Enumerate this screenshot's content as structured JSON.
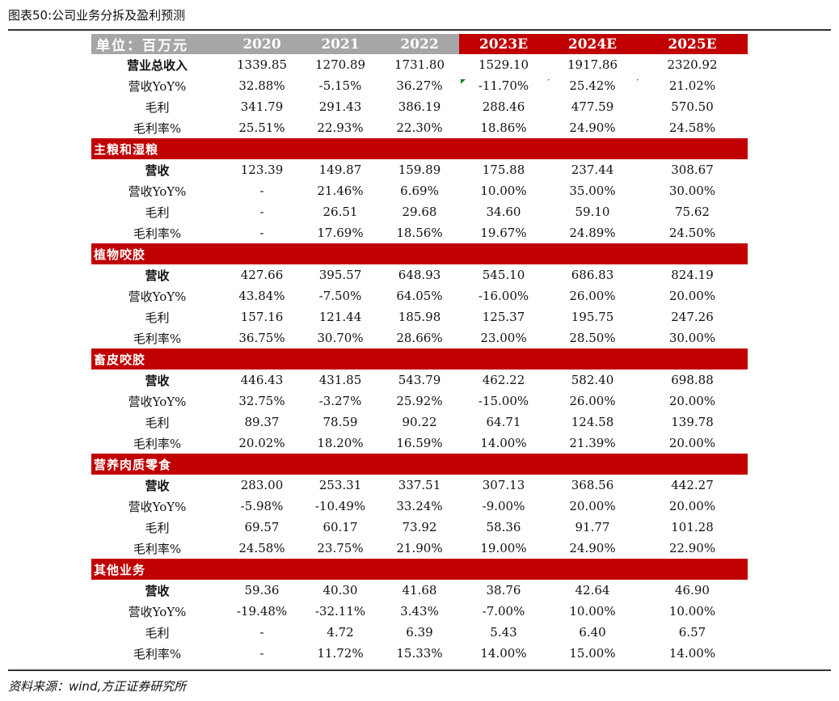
{
  "caption": "图表50:公司业务分拆及盈利预测",
  "source": "资料来源：wind,方正证券研究所",
  "header": {
    "unit": "单位：百万元",
    "years": [
      "2020",
      "2021",
      "2022",
      "2023E",
      "2024E",
      "2025E"
    ]
  },
  "total": {
    "rows": [
      {
        "label": "营业总收入",
        "bold": true,
        "values": [
          "1339.85",
          "1270.89",
          "1731.80",
          "1529.10",
          "1917.86",
          "2320.92"
        ]
      },
      {
        "label": "营收YoY%",
        "bold": false,
        "values": [
          "32.88%",
          "-5.15%",
          "36.27%",
          "-11.70%",
          "25.42%",
          "21.02%"
        ],
        "flags": true
      },
      {
        "label": "毛利",
        "bold": false,
        "values": [
          "341.79",
          "291.43",
          "386.19",
          "288.46",
          "477.59",
          "570.50"
        ]
      },
      {
        "label": "毛利率%",
        "bold": false,
        "values": [
          "25.51%",
          "22.93%",
          "22.30%",
          "18.86%",
          "24.90%",
          "24.58%"
        ]
      }
    ]
  },
  "sections": [
    {
      "title": "主粮和湿粮",
      "rows": [
        {
          "label": "营收",
          "bold": true,
          "values": [
            "123.39",
            "149.87",
            "159.89",
            "175.88",
            "237.44",
            "308.67"
          ]
        },
        {
          "label": "营收YoY%",
          "bold": false,
          "values": [
            "-",
            "21.46%",
            "6.69%",
            "10.00%",
            "35.00%",
            "30.00%"
          ]
        },
        {
          "label": "毛利",
          "bold": false,
          "values": [
            "-",
            "26.51",
            "29.68",
            "34.60",
            "59.10",
            "75.62"
          ]
        },
        {
          "label": "毛利率%",
          "bold": false,
          "values": [
            "-",
            "17.69%",
            "18.56%",
            "19.67%",
            "24.89%",
            "24.50%"
          ]
        }
      ]
    },
    {
      "title": "植物咬胶",
      "rows": [
        {
          "label": "营收",
          "bold": true,
          "values": [
            "427.66",
            "395.57",
            "648.93",
            "545.10",
            "686.83",
            "824.19"
          ]
        },
        {
          "label": "营收YoY%",
          "bold": false,
          "values": [
            "43.84%",
            "-7.50%",
            "64.05%",
            "-16.00%",
            "26.00%",
            "20.00%"
          ]
        },
        {
          "label": "毛利",
          "bold": false,
          "values": [
            "157.16",
            "121.44",
            "185.98",
            "125.37",
            "195.75",
            "247.26"
          ]
        },
        {
          "label": "毛利率%",
          "bold": false,
          "values": [
            "36.75%",
            "30.70%",
            "28.66%",
            "23.00%",
            "28.50%",
            "30.00%"
          ]
        }
      ]
    },
    {
      "title": "畜皮咬胶",
      "rows": [
        {
          "label": "营收",
          "bold": true,
          "values": [
            "446.43",
            "431.85",
            "543.79",
            "462.22",
            "582.40",
            "698.88"
          ]
        },
        {
          "label": "营收YoY%",
          "bold": false,
          "values": [
            "32.75%",
            "-3.27%",
            "25.92%",
            "-15.00%",
            "26.00%",
            "20.00%"
          ]
        },
        {
          "label": "毛利",
          "bold": false,
          "values": [
            "89.37",
            "78.59",
            "90.22",
            "64.71",
            "124.58",
            "139.78"
          ]
        },
        {
          "label": "毛利率%",
          "bold": false,
          "values": [
            "20.02%",
            "18.20%",
            "16.59%",
            "14.00%",
            "21.39%",
            "20.00%"
          ]
        }
      ]
    },
    {
      "title": "营养肉质零食",
      "rows": [
        {
          "label": "营收",
          "bold": true,
          "values": [
            "283.00",
            "253.31",
            "337.51",
            "307.13",
            "368.56",
            "442.27"
          ]
        },
        {
          "label": "营收YoY%",
          "bold": false,
          "values": [
            "-5.98%",
            "-10.49%",
            "33.24%",
            "-9.00%",
            "20.00%",
            "20.00%"
          ]
        },
        {
          "label": "毛利",
          "bold": false,
          "values": [
            "69.57",
            "60.17",
            "73.92",
            "58.36",
            "91.77",
            "101.28"
          ]
        },
        {
          "label": "毛利率%",
          "bold": false,
          "values": [
            "24.58%",
            "23.75%",
            "21.90%",
            "19.00%",
            "24.90%",
            "22.90%"
          ]
        }
      ]
    },
    {
      "title": "其他业务",
      "rows": [
        {
          "label": "营收",
          "bold": true,
          "values": [
            "59.36",
            "40.30",
            "41.68",
            "38.76",
            "42.64",
            "46.90"
          ]
        },
        {
          "label": "营收YoY%",
          "bold": false,
          "values": [
            "-19.48%",
            "-32.11%",
            "3.43%",
            "-7.00%",
            "10.00%",
            "10.00%"
          ]
        },
        {
          "label": "毛利",
          "bold": false,
          "values": [
            "-",
            "4.72",
            "6.39",
            "5.43",
            "6.40",
            "6.57"
          ]
        },
        {
          "label": "毛利率%",
          "bold": false,
          "values": [
            "-",
            "11.72%",
            "15.33%",
            "14.00%",
            "15.00%",
            "14.00%"
          ]
        }
      ]
    }
  ],
  "colors": {
    "header_grey": "#a6a6a6",
    "accent_red": "#c00000",
    "flag_green": "#1a8a1a"
  }
}
